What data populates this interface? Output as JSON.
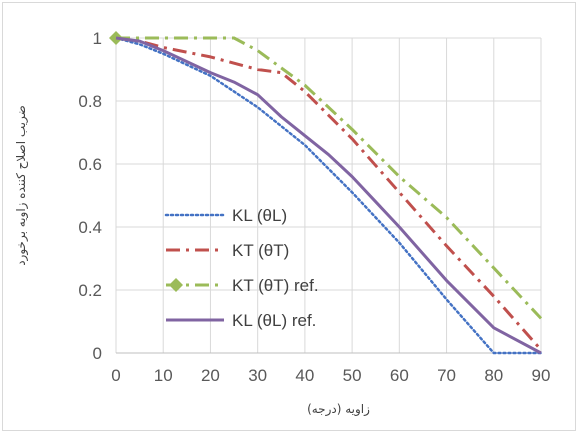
{
  "chart_data": {
    "type": "line",
    "xlabel": "زاویه  (درجه)",
    "ylabel": "ضریب اصلاح کننده زاویه برخورد",
    "xlim": [
      0,
      90
    ],
    "ylim": [
      0,
      1
    ],
    "grid": true,
    "legend_position": "bottom-left",
    "x_ticks": [
      "0",
      "10",
      "20",
      "30",
      "40",
      "50",
      "60",
      "70",
      "80",
      "90"
    ],
    "y_ticks": [
      "0",
      "0.2",
      "0.4",
      "0.6",
      "0.8",
      "1"
    ],
    "series": [
      {
        "name": "KL (θL)",
        "color": "#4472c4",
        "dash": "dotted",
        "x": [
          0,
          5,
          10,
          20,
          30,
          40,
          50,
          60,
          70,
          80,
          90
        ],
        "y": [
          1.0,
          0.98,
          0.95,
          0.88,
          0.78,
          0.66,
          0.51,
          0.35,
          0.17,
          0.0,
          0.0
        ]
      },
      {
        "name": "KT (θT)",
        "color": "#c0504d",
        "dash": "dash-dot",
        "x": [
          0,
          5,
          10,
          20,
          30,
          35,
          40,
          50,
          60,
          70,
          80,
          90
        ],
        "y": [
          1.0,
          0.99,
          0.97,
          0.94,
          0.9,
          0.89,
          0.83,
          0.68,
          0.51,
          0.34,
          0.18,
          0.01
        ]
      },
      {
        "name": "KT (θT) ref.",
        "color": "#9bbb59",
        "dash": "dash-dot",
        "marker": "diamond",
        "x": [
          0,
          5,
          10,
          15,
          20,
          25,
          30,
          40,
          50,
          60,
          70,
          80,
          90
        ],
        "y": [
          1.0,
          1.0,
          1.0,
          1.0,
          1.0,
          1.0,
          0.96,
          0.85,
          0.71,
          0.56,
          0.43,
          0.27,
          0.11
        ]
      },
      {
        "name": "KL (θL)   ref.",
        "color": "#8064a2",
        "dash": "solid",
        "x": [
          0,
          5,
          10,
          20,
          25,
          30,
          35,
          40,
          45,
          50,
          60,
          70,
          80,
          90
        ],
        "y": [
          1.0,
          0.99,
          0.96,
          0.89,
          0.86,
          0.82,
          0.75,
          0.69,
          0.63,
          0.56,
          0.4,
          0.23,
          0.08,
          0.0
        ]
      }
    ]
  }
}
